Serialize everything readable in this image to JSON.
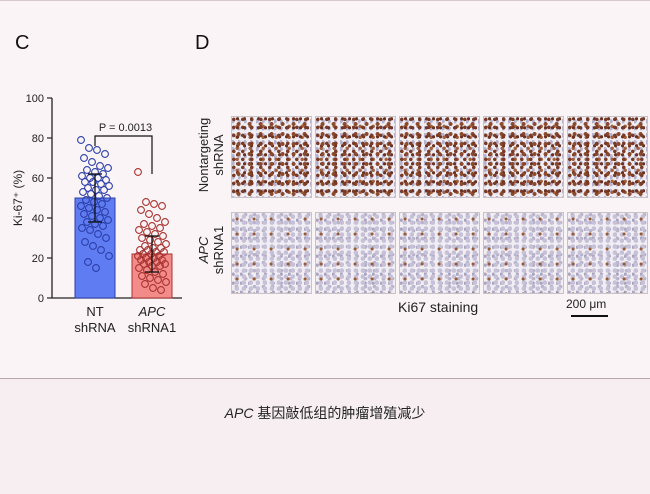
{
  "panels": {
    "c_letter": "C",
    "d_letter": "D"
  },
  "chart_data": {
    "type": "bar",
    "ylabel": "Ki-67⁺ (%)",
    "ylim": [
      0,
      100
    ],
    "yticks": [
      "0",
      "20",
      "40",
      "60",
      "80",
      "100"
    ],
    "categories": [
      {
        "line1": "NT",
        "line2": "shRNA",
        "italic_line1": false
      },
      {
        "line1": "APC",
        "line2": "shRNA1",
        "italic_line1": true
      }
    ],
    "values": [
      50,
      22
    ],
    "errors": [
      12,
      9
    ],
    "bar_colors": [
      "#5f7cf2",
      "#f48b8b"
    ],
    "point_colors": [
      "#2c3fa8",
      "#a7332f"
    ],
    "points": [
      [
        79,
        75,
        74,
        72,
        70,
        68,
        66,
        65,
        64,
        63,
        62,
        61,
        60,
        60,
        59,
        58,
        58,
        57,
        56,
        55,
        54,
        54,
        53,
        52,
        51,
        50,
        49,
        48,
        47,
        46,
        45,
        44,
        43,
        42,
        41,
        40,
        39,
        38,
        37,
        36,
        35,
        34,
        32,
        30,
        28,
        26,
        24,
        21,
        18,
        15
      ],
      [
        63,
        48,
        47,
        46,
        44,
        42,
        40,
        38,
        37,
        36,
        35,
        34,
        33,
        32,
        31,
        30,
        29,
        28,
        27,
        26,
        25,
        25,
        24,
        24,
        23,
        23,
        22,
        22,
        21,
        21,
        20,
        20,
        19,
        19,
        18,
        18,
        17,
        17,
        16,
        16,
        15,
        14,
        13,
        12,
        11,
        10,
        9,
        8,
        7,
        5,
        4
      ]
    ],
    "significance": "P = 0.0013"
  },
  "micrographs": {
    "row_labels": [
      {
        "line1": "Nontargeting",
        "line2": "shRNA",
        "italic_line1": false
      },
      {
        "line1": "APC",
        "line2": "shRNA1",
        "italic_line1": true
      }
    ],
    "columns": 5,
    "staining_label": "Ki67 staining",
    "scale_bar": "200 μm"
  },
  "caption": {
    "gene": "APC",
    "text": " 基因敲低组的肿瘤增殖减少"
  }
}
